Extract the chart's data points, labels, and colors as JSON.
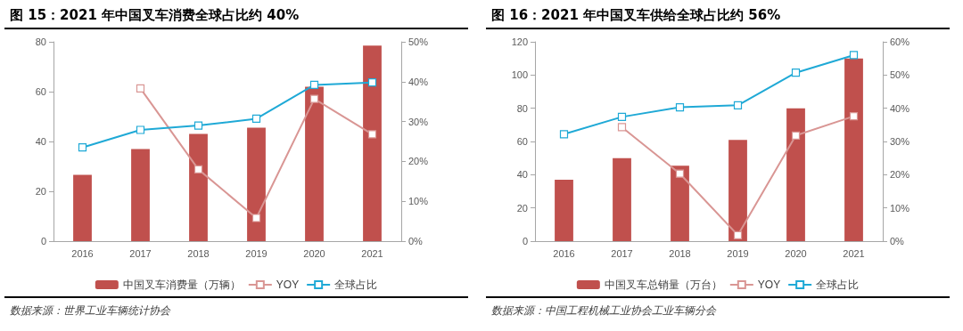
{
  "chart_data": [
    {
      "type": "bar",
      "title": "图 15：2021 年中国叉车消费全球占比约 40%",
      "annotations": [
        "数据来源：世界工业车辆统计协会"
      ],
      "categories": [
        "2016",
        "2017",
        "2018",
        "2019",
        "2020",
        "2021"
      ],
      "series": [
        {
          "name": "中国叉车消费量（万辆）",
          "color": "#c0504d",
          "values": [
            26.6,
            37,
            43,
            45.5,
            62,
            78.5
          ]
        },
        {
          "name": "YOY",
          "type": "line",
          "axis": "y2",
          "color": "#d99694",
          "values": [
            null,
            38.3,
            18,
            5.8,
            35.7,
            26.8
          ]
        },
        {
          "name": "全球占比",
          "type": "line",
          "axis": "y2",
          "color": "#1fa9d6",
          "values": [
            23.5,
            27.9,
            29,
            30.7,
            39.2,
            39.8
          ]
        }
      ],
      "ylim": [
        0,
        80
      ],
      "yticks": [
        0,
        20,
        40,
        60,
        80
      ],
      "y2lim": [
        0,
        50
      ],
      "y2ticks": [
        {
          "value": 0,
          "label": "0%"
        },
        {
          "value": 10,
          "label": "10%"
        },
        {
          "value": 20,
          "label": "20%"
        },
        {
          "value": 30,
          "label": "30%"
        },
        {
          "value": 40,
          "label": "40%"
        },
        {
          "value": 50,
          "label": "50%"
        }
      ],
      "legend": "bottom",
      "marker": "square",
      "grid": false
    },
    {
      "type": "bar",
      "title": "图 16：2021 年中国叉车供给全球占比约 56%",
      "annotations": [
        "数据来源：中国工程机械工业协会工业车辆分会"
      ],
      "categories": [
        "2016",
        "2017",
        "2018",
        "2019",
        "2020",
        "2021"
      ],
      "series": [
        {
          "name": "中国叉车总销量（万台）",
          "color": "#c0504d",
          "values": [
            37,
            50,
            45.4,
            61,
            80,
            110
          ]
        },
        {
          "name": "YOY",
          "type": "line",
          "axis": "y2",
          "color": "#d99694",
          "values": [
            null,
            34.3,
            20.3,
            1.8,
            31.8,
            37.6
          ]
        },
        {
          "name": "全球占比",
          "type": "line",
          "axis": "y2",
          "color": "#1fa9d6",
          "values": [
            32.2,
            37.4,
            40.3,
            40.9,
            50.7,
            56
          ]
        }
      ],
      "ylim": [
        0,
        120
      ],
      "yticks": [
        0,
        20,
        40,
        60,
        80,
        100,
        120
      ],
      "y2lim": [
        0,
        60
      ],
      "y2ticks": [
        {
          "value": 0,
          "label": "0%"
        },
        {
          "value": 10,
          "label": "10%"
        },
        {
          "value": 20,
          "label": "20%"
        },
        {
          "value": 30,
          "label": "30%"
        },
        {
          "value": 40,
          "label": "40%"
        },
        {
          "value": 50,
          "label": "50%"
        },
        {
          "value": 60,
          "label": "60%"
        }
      ],
      "legend": "bottom",
      "marker": "square",
      "grid": false
    }
  ]
}
